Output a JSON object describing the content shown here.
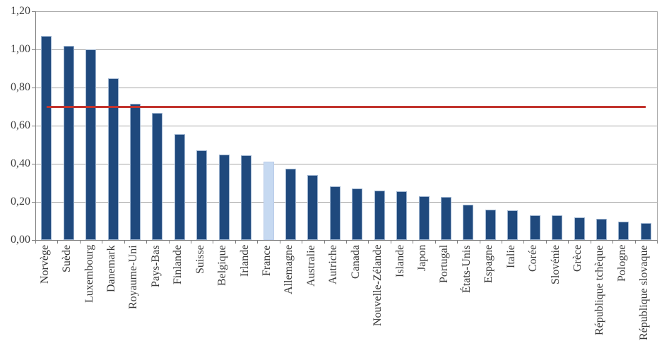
{
  "chart_data": {
    "type": "bar",
    "title": "",
    "categories": [
      "Norvège",
      "Suède",
      "Luxembourg",
      "Danemark",
      "Royaume-Uni",
      "Pays-Bas",
      "Finlande",
      "Suisse",
      "Belgique",
      "Irlande",
      "France",
      "Allemagne",
      "Australie",
      "Autriche",
      "Canada",
      "Nouvelle-Zélande",
      "Islande",
      "Japon",
      "Portugal",
      "États-Unis",
      "Espagne",
      "Italie",
      "Corée",
      "Slovénie",
      "Grèce",
      "République tchèque",
      "Pologne",
      "République slovaque"
    ],
    "values": [
      1.07,
      1.02,
      1.0,
      0.85,
      0.715,
      0.665,
      0.555,
      0.47,
      0.45,
      0.445,
      0.41,
      0.375,
      0.34,
      0.28,
      0.27,
      0.26,
      0.255,
      0.23,
      0.225,
      0.185,
      0.16,
      0.155,
      0.13,
      0.13,
      0.12,
      0.11,
      0.095,
      0.09
    ],
    "highlight_category": "France",
    "reference_line": {
      "value": 0.7
    },
    "y_axis": {
      "min": 0,
      "max": 1.2,
      "step": 0.2,
      "tick_labels": [
        "0,00",
        "0,20",
        "0,40",
        "0,60",
        "0,80",
        "1,00",
        "1,20"
      ]
    },
    "x_axis": {
      "label_rotation": -90
    },
    "grid": true,
    "legend": false
  },
  "colors": {
    "bar_fill": "#1F497D",
    "bar_border": "#9DB4D0",
    "highlight_fill": "#C6D9F1",
    "highlight_border": "#B9CCE9",
    "reference_line": "#C2342E",
    "gridline": "#A6A6A6",
    "axis_line": "#7F7F7F",
    "text": "#3A3A3A",
    "background": "#FFFFFF"
  }
}
